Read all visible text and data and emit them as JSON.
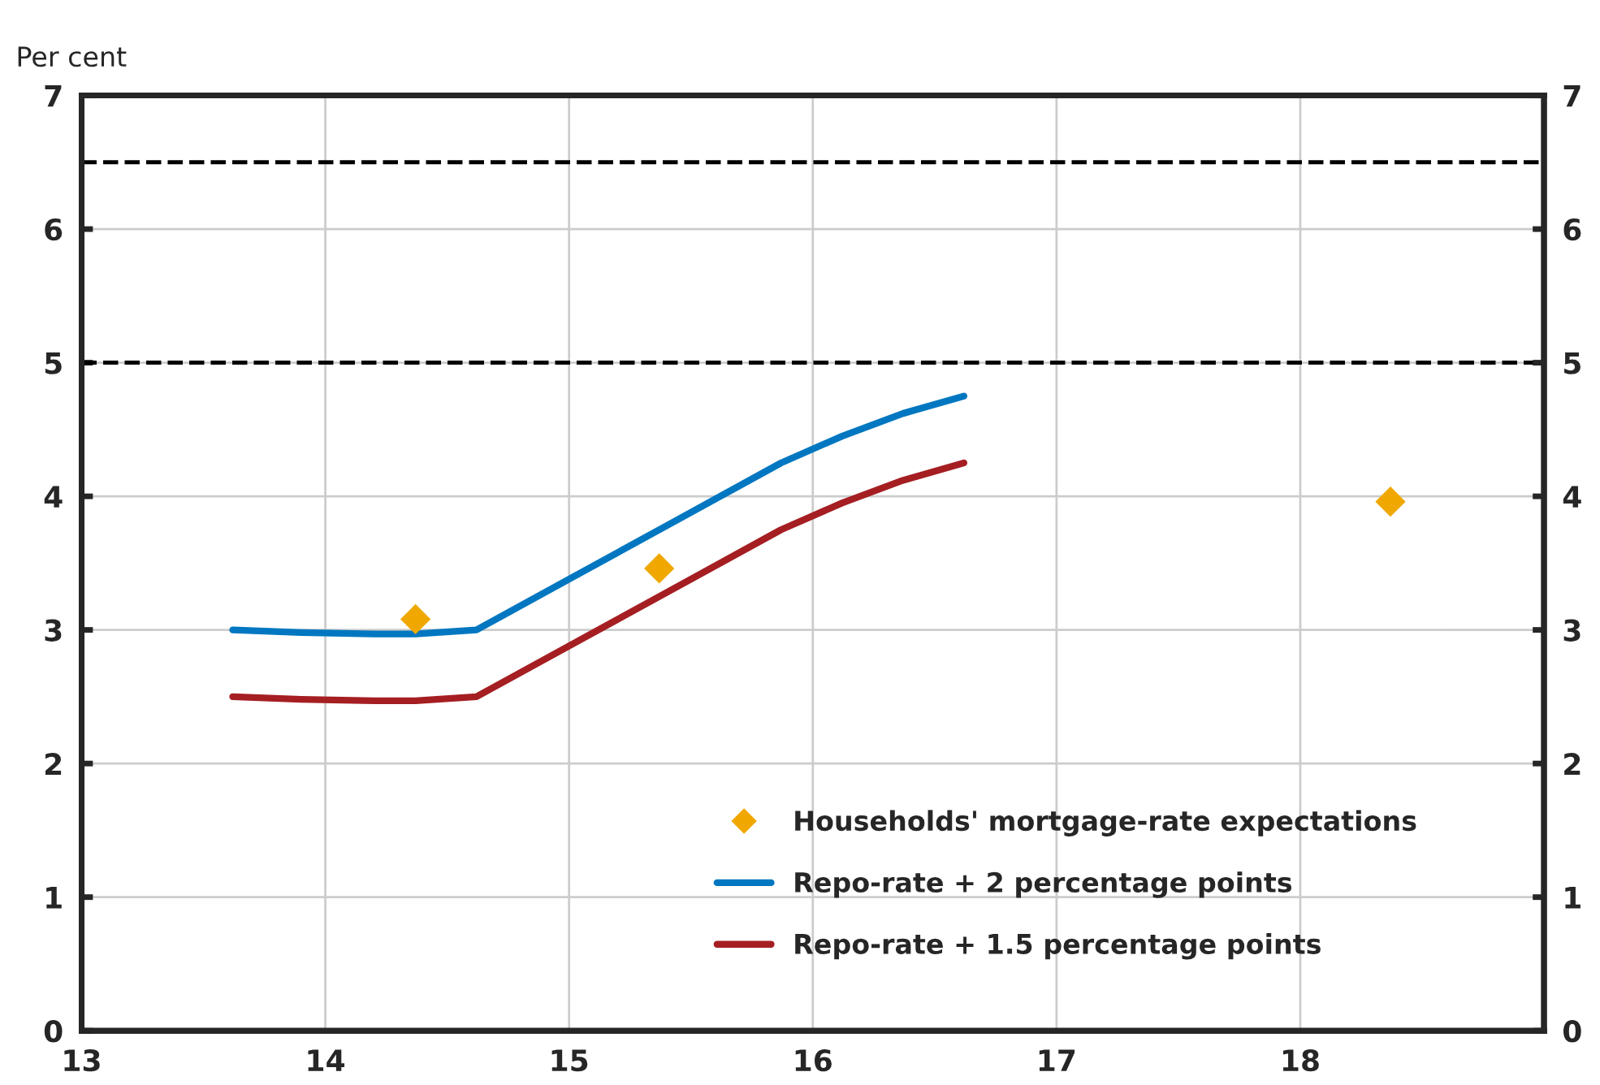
{
  "chart_data": {
    "type": "line",
    "ylabel": "Per cent",
    "xlim": [
      13,
      19
    ],
    "xticks": [
      13,
      14,
      15,
      16,
      17,
      18,
      {
        "value": 19,
        "label": null
      }
    ],
    "ylim": [
      0,
      7
    ],
    "yticks": [
      0,
      1,
      2,
      3,
      4,
      5,
      6,
      7
    ],
    "y2lim": [
      0,
      7
    ],
    "y2ticks": [
      0,
      1,
      2,
      3,
      4,
      5,
      6,
      7
    ],
    "grid": true,
    "legend": "bottom right",
    "series": [
      {
        "name": "Households' mortgage-rate expectations",
        "type": "scatter",
        "marker": "diamond",
        "color": "#f0a800",
        "x": [
          14.37,
          15.37,
          18.37
        ],
        "values": [
          3.08,
          3.46,
          3.96
        ]
      },
      {
        "name": "Repo-rate + 2 percentage points",
        "color": "#0077c0",
        "x": [
          13.62,
          13.9,
          14.2,
          14.37,
          14.62,
          15.0,
          15.4,
          15.87,
          16.12,
          16.37,
          16.62
        ],
        "values": [
          3.0,
          2.98,
          2.97,
          2.97,
          3.0,
          3.38,
          3.78,
          4.25,
          4.45,
          4.62,
          4.75
        ]
      },
      {
        "name": "Repo-rate + 1.5 percentage points",
        "color": "#a51e22",
        "x": [
          13.62,
          13.9,
          14.2,
          14.37,
          14.62,
          15.0,
          15.4,
          15.87,
          16.12,
          16.37,
          16.62
        ],
        "values": [
          2.5,
          2.48,
          2.47,
          2.47,
          2.5,
          2.88,
          3.28,
          3.75,
          3.95,
          4.12,
          4.25
        ]
      }
    ],
    "ref_lines": [
      {
        "axis": "y",
        "value": 5,
        "color": "#000000",
        "line_style": "dashed"
      },
      {
        "axis": "y",
        "value": 6.5,
        "color": "#000000",
        "line_style": "dashed"
      }
    ]
  }
}
